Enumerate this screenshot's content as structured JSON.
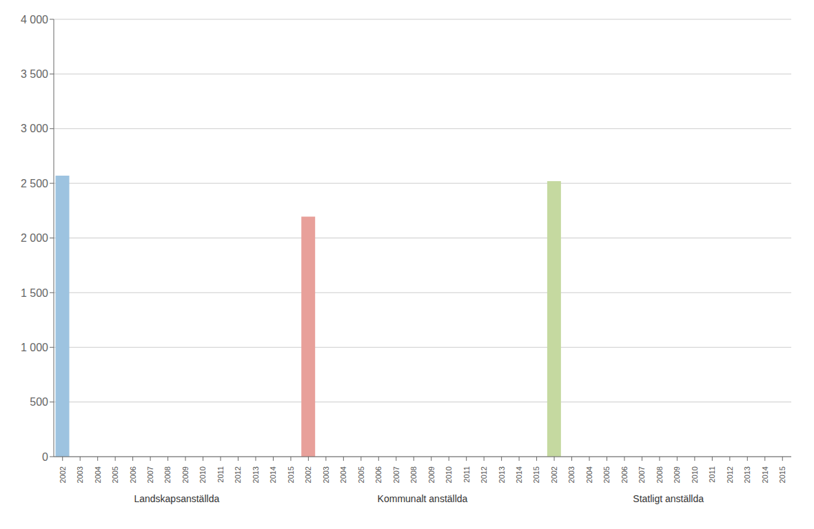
{
  "chart_data": {
    "type": "bar",
    "series": [
      {
        "name": "Landskapsanställda",
        "color": "#9dc3e0",
        "categories": [
          "2002",
          "2003",
          "2004",
          "2005",
          "2006",
          "2007",
          "2008",
          "2009",
          "2010",
          "2011",
          "2012",
          "2013",
          "2014",
          "2015"
        ],
        "values": [
          2570,
          0,
          0,
          0,
          0,
          0,
          0,
          0,
          0,
          0,
          0,
          0,
          0,
          0
        ]
      },
      {
        "name": "Kommunalt anställda",
        "color": "#e8a09a",
        "categories": [
          "2002",
          "2003",
          "2004",
          "2005",
          "2006",
          "2007",
          "2008",
          "2009",
          "2010",
          "2011",
          "2012",
          "2013",
          "2014",
          "2015"
        ],
        "values": [
          2195,
          0,
          0,
          0,
          0,
          0,
          0,
          0,
          0,
          0,
          0,
          0,
          0,
          0
        ]
      },
      {
        "name": "Statligt anställda",
        "color": "#c5d9a0",
        "categories": [
          "2002",
          "2003",
          "2004",
          "2005",
          "2006",
          "2007",
          "2008",
          "2009",
          "2010",
          "2011",
          "2012",
          "2013",
          "2014",
          "2015"
        ],
        "values": [
          2520,
          0,
          0,
          0,
          0,
          0,
          0,
          0,
          0,
          0,
          0,
          0,
          0,
          0
        ]
      }
    ],
    "ylim": [
      0,
      4000
    ],
    "yticks": [
      0,
      500,
      {
        "value": 1000,
        "label": "1 000"
      },
      {
        "value": 1500,
        "label": "1 500"
      },
      {
        "value": 2000,
        "label": "2 000"
      },
      {
        "value": 2500,
        "label": "2 500"
      },
      {
        "value": 3000,
        "label": "3 000"
      },
      {
        "value": 3500,
        "label": "3 500"
      },
      {
        "value": 4000,
        "label": "4 000"
      }
    ],
    "grid": true
  }
}
